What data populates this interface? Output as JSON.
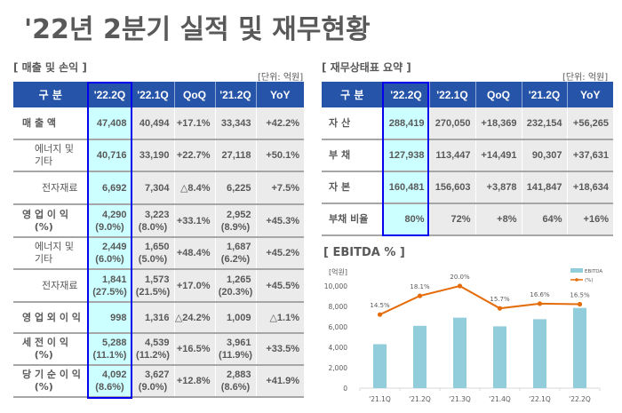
{
  "page": {
    "title": "'22년 2분기 실적 및 재무현황"
  },
  "income": {
    "section_title": "[ 매출 및 손익 ]",
    "unit": "[단위: 억원]",
    "headers": [
      "구 분",
      "'22.2Q",
      "'22.1Q",
      "QoQ",
      "'21.2Q",
      "YoY"
    ],
    "rows": [
      {
        "label": "매 출 액",
        "label_pct": "",
        "kind": "main",
        "cells": [
          [
            "47,408",
            ""
          ],
          [
            "40,494",
            ""
          ],
          [
            "+17.1%",
            ""
          ],
          [
            "33,343",
            ""
          ],
          [
            "+42.2%",
            ""
          ]
        ]
      },
      {
        "label": "에너지 및 기타",
        "label_pct": "",
        "kind": "sub",
        "cells": [
          [
            "40,716",
            ""
          ],
          [
            "33,190",
            ""
          ],
          [
            "+22.7%",
            ""
          ],
          [
            "27,118",
            ""
          ],
          [
            "+50.1%",
            ""
          ]
        ]
      },
      {
        "label": "전자재료",
        "label_pct": "",
        "kind": "subc",
        "cells": [
          [
            "6,692",
            ""
          ],
          [
            "7,304",
            ""
          ],
          [
            "△8.4%",
            ""
          ],
          [
            "6,225",
            ""
          ],
          [
            "+7.5%",
            ""
          ]
        ]
      },
      {
        "label": "영 업 이 익",
        "label_pct": "(%)",
        "kind": "main",
        "cells": [
          [
            "4,290",
            "(9.0%)"
          ],
          [
            "3,223",
            "(8.0%)"
          ],
          [
            "+33.1%",
            ""
          ],
          [
            "2,952",
            "(8.9%)"
          ],
          [
            "+45.3%",
            ""
          ]
        ]
      },
      {
        "label": "에너지 및 기타",
        "label_pct": "",
        "kind": "sub",
        "cells": [
          [
            "2,449",
            "(6.0%)"
          ],
          [
            "1,650",
            "(5.0%)"
          ],
          [
            "+48.4%",
            ""
          ],
          [
            "1,687",
            "(6.2%)"
          ],
          [
            "+45.2%",
            ""
          ]
        ]
      },
      {
        "label": "전자재료",
        "label_pct": "",
        "kind": "subc",
        "cells": [
          [
            "1,841",
            "(27.5%)"
          ],
          [
            "1,573",
            "(21.5%)"
          ],
          [
            "+17.0%",
            ""
          ],
          [
            "1,265",
            "(20.3%)"
          ],
          [
            "+45.5%",
            ""
          ]
        ]
      },
      {
        "label": "영 업 외 이 익",
        "label_pct": "",
        "kind": "main",
        "cells": [
          [
            "998",
            ""
          ],
          [
            "1,316",
            ""
          ],
          [
            "△24.2%",
            ""
          ],
          [
            "1,009",
            ""
          ],
          [
            "△1.1%",
            ""
          ]
        ]
      },
      {
        "label": "세 전 이 익",
        "label_pct": "(%)",
        "kind": "main",
        "cells": [
          [
            "5,288",
            "(11.1%)"
          ],
          [
            "4,539",
            "(11.2%)"
          ],
          [
            "+16.5%",
            ""
          ],
          [
            "3,961",
            "(11.9%)"
          ],
          [
            "+33.5%",
            ""
          ]
        ]
      },
      {
        "label": "당 기 순 이 익",
        "label_pct": "(%)",
        "kind": "main",
        "cells": [
          [
            "4,092",
            "(8.6%)"
          ],
          [
            "3,627",
            "(9.0%)"
          ],
          [
            "+12.8%",
            ""
          ],
          [
            "2,883",
            "(8.6%)"
          ],
          [
            "+41.9%",
            ""
          ]
        ]
      }
    ]
  },
  "balance": {
    "section_title": "[ 재무상태표 요약 ]",
    "unit": "[단위: 억원]",
    "headers": [
      "구 분",
      "'22.2Q",
      "'22.1Q",
      "QoQ",
      "'21.2Q",
      "YoY"
    ],
    "rows": [
      {
        "label": "자 산",
        "cells": [
          "288,419",
          "270,050",
          "+18,369",
          "232,154",
          "+56,265"
        ]
      },
      {
        "label": "부 채",
        "cells": [
          "127,938",
          "113,447",
          "+14,491",
          "90,307",
          "+37,631"
        ]
      },
      {
        "label": "자 본",
        "cells": [
          "160,481",
          "156,603",
          "+3,878",
          "141,847",
          "+18,634"
        ]
      },
      {
        "label": "부채 비율",
        "cells": [
          "80%",
          "72%",
          "+8%",
          "64%",
          "+16%"
        ]
      }
    ]
  },
  "ebitda": {
    "section_title": "[ EBITDA % ]"
  },
  "chart_data": {
    "type": "bar",
    "title": "[ EBITDA % ]",
    "ylabel": "[억원]",
    "ylim": [
      0,
      10000
    ],
    "yticks": [
      "0",
      "2,000",
      "4,000",
      "6,000",
      "8,000",
      "10,000"
    ],
    "categories": [
      "'21.1Q",
      "'21.2Q",
      "'21.3Q",
      "'21.4Q",
      "'22.1Q",
      "'22.2Q"
    ],
    "series": [
      {
        "name": "EBITDA",
        "type": "bar",
        "color": "#92cddc",
        "values": [
          4300,
          6100,
          6900,
          6050,
          6750,
          7850
        ]
      },
      {
        "name": "(%)",
        "type": "line",
        "color": "#e46c0a",
        "values": [
          14.5,
          18.1,
          20.0,
          15.7,
          16.6,
          16.5
        ],
        "labels": [
          "14.5%",
          "18.1%",
          "20.0%",
          "15.7%",
          "16.6%",
          "16.5%"
        ]
      }
    ],
    "line_range_pct": [
      5,
      20
    ],
    "legend": "top-right",
    "grid": false
  },
  "colors": {
    "header_bg": "#2654a8",
    "highlight_bg": "#ccffff",
    "highlight_border": "#0000ee",
    "cell_bg": "#ebebeb",
    "text": "#595959"
  }
}
